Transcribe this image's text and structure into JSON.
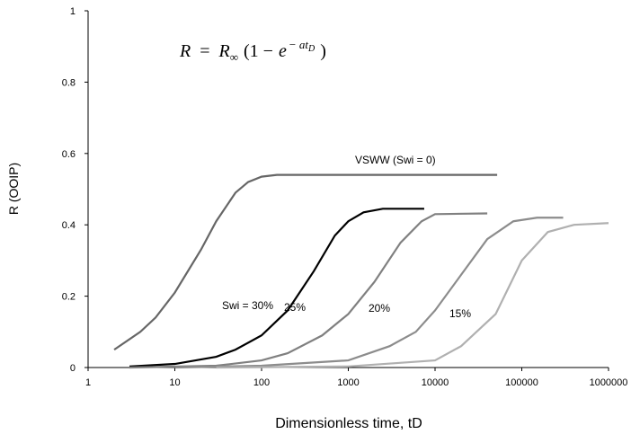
{
  "chart_data": {
    "type": "line",
    "log_x": true,
    "y_label": "R (OOIP)",
    "x_label": "Dimensionless time, tD",
    "formula": {
      "lhs": "R",
      "eq": "=",
      "r": "R",
      "r_sub": "∞",
      "open": "(1 −",
      "e": "e",
      "sup": "− at",
      "sup_sub": "D",
      "close": ")"
    },
    "xlim": [
      1,
      1000000
    ],
    "xticks": [
      1,
      10,
      100,
      1000,
      10000,
      100000,
      1000000
    ],
    "ylim": [
      0,
      1
    ],
    "yticks": [
      0,
      0.2,
      0.4,
      0.6,
      0.8,
      1
    ],
    "series": [
      {
        "name": "VSWW (Swi = 0)",
        "color": "#666666",
        "x": [
          2,
          4,
          6,
          10,
          20,
          30,
          50,
          70,
          100,
          150,
          1000,
          52000
        ],
        "values": [
          0.05,
          0.1,
          0.14,
          0.21,
          0.33,
          0.41,
          0.49,
          0.52,
          0.535,
          0.54,
          0.54,
          0.54
        ]
      },
      {
        "name": "Swi = 30%",
        "color": "#000000",
        "x": [
          3,
          10,
          30,
          50,
          100,
          200,
          400,
          700,
          1000,
          1500,
          2500,
          7500
        ],
        "values": [
          0.003,
          0.01,
          0.03,
          0.05,
          0.09,
          0.16,
          0.27,
          0.37,
          0.41,
          0.435,
          0.445,
          0.445
        ]
      },
      {
        "name": "25%",
        "color": "#808080",
        "x": [
          3,
          30,
          100,
          200,
          500,
          1000,
          2000,
          4000,
          7000,
          10000,
          40000
        ],
        "values": [
          0,
          0.005,
          0.02,
          0.04,
          0.09,
          0.15,
          0.24,
          0.35,
          0.41,
          0.43,
          0.432
        ]
      },
      {
        "name": "20%",
        "color": "#8c8c8c",
        "x": [
          10,
          100,
          1000,
          3000,
          6000,
          10000,
          20000,
          40000,
          80000,
          150000,
          300000
        ],
        "values": [
          0,
          0.005,
          0.02,
          0.06,
          0.1,
          0.16,
          0.26,
          0.36,
          0.41,
          0.42,
          0.42
        ]
      },
      {
        "name": "15%",
        "color": "#b0b0b0",
        "x": [
          30,
          1000,
          10000,
          20000,
          50000,
          100000,
          200000,
          400000,
          1000000
        ],
        "values": [
          0,
          0.003,
          0.02,
          0.06,
          0.15,
          0.3,
          0.38,
          0.4,
          0.405
        ]
      }
    ]
  }
}
